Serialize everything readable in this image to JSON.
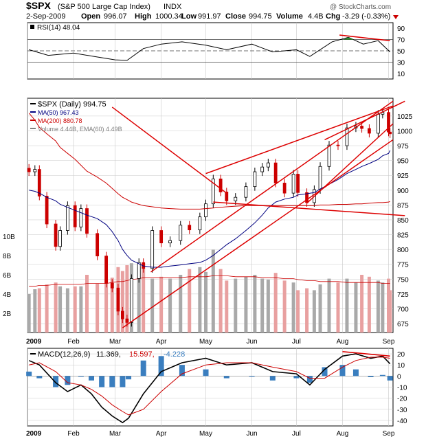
{
  "header": {
    "symbol": "$SPX",
    "name": "(S&P 500 Large Cap Index)",
    "exchange": "INDX",
    "watermark": "@ StockCharts.com",
    "date": "2-Sep-2009",
    "open_label": "Open",
    "open": "996.07",
    "high_label": "High",
    "high": "1000.34",
    "low_label": "Low",
    "low": "991.97",
    "close_label": "Close",
    "close": "994.75",
    "volume_label": "Volume",
    "volume": "4.4B",
    "chg_label": "Chg",
    "chg": "-3.29 (-0.33%)"
  },
  "colors": {
    "up_candle": "#000000",
    "down_candle": "#cc0000",
    "ma50": "#000080",
    "ma200": "#cc0000",
    "trendline": "#dd0000",
    "volume_up": "#a9a9a9",
    "volume_down": "#e8a0a0",
    "rsi_line": "#000000",
    "rsi_overbought_fill": "#2e8b2e",
    "macd_line": "#000000",
    "signal_line": "#cc0000",
    "histogram": "#3a7ebf",
    "grid": "#c8c8c8",
    "panel_border": "#000000"
  },
  "chart_data": [
    {
      "type": "line",
      "panel": "RSI",
      "title": "RSI(14) 48.04",
      "ylim": [
        0,
        100
      ],
      "yticks": [
        10,
        30,
        50,
        70,
        90
      ],
      "reference_lines": [
        30,
        50,
        70
      ],
      "x": [
        "2009-01-02",
        "2009-01-15",
        "2009-02-01",
        "2009-02-15",
        "2009-03-01",
        "2009-03-09",
        "2009-03-20",
        "2009-04-01",
        "2009-04-15",
        "2009-05-01",
        "2009-05-15",
        "2009-06-01",
        "2009-06-15",
        "2009-07-01",
        "2009-07-10",
        "2009-07-25",
        "2009-08-05",
        "2009-08-15",
        "2009-08-25",
        "2009-09-02"
      ],
      "series": [
        {
          "name": "RSI(14)",
          "values": [
            52,
            42,
            46,
            40,
            34,
            33,
            54,
            62,
            66,
            60,
            52,
            62,
            48,
            52,
            40,
            66,
            74,
            62,
            68,
            48
          ]
        }
      ],
      "annotations": [
        {
          "type": "trendline",
          "label": "RSI divergence line",
          "from": [
            "2009-07-30",
            78
          ],
          "to": [
            "2009-09-02",
            68
          ]
        }
      ]
    },
    {
      "type": "candlestick",
      "panel": "Price",
      "title": "$SPX (Daily) 994.75",
      "ylim": [
        660,
        1055
      ],
      "yticks": [
        675,
        700,
        725,
        750,
        775,
        800,
        825,
        850,
        875,
        900,
        925,
        950,
        975,
        1000,
        1025
      ],
      "x": [
        "2009-01-02",
        "2009-01-06",
        "2009-01-09",
        "2009-01-14",
        "2009-01-20",
        "2009-01-23",
        "2009-01-28",
        "2009-02-02",
        "2009-02-06",
        "2009-02-10",
        "2009-02-17",
        "2009-02-23",
        "2009-02-27",
        "2009-03-03",
        "2009-03-06",
        "2009-03-09",
        "2009-03-12",
        "2009-03-17",
        "2009-03-20",
        "2009-03-26",
        "2009-04-01",
        "2009-04-07",
        "2009-04-14",
        "2009-04-20",
        "2009-04-27",
        "2009-05-01",
        "2009-05-06",
        "2009-05-11",
        "2009-05-15",
        "2009-05-21",
        "2009-05-28",
        "2009-06-03",
        "2009-06-08",
        "2009-06-12",
        "2009-06-17",
        "2009-06-23",
        "2009-06-29",
        "2009-07-02",
        "2009-07-08",
        "2009-07-13",
        "2009-07-17",
        "2009-07-23",
        "2009-07-29",
        "2009-08-04",
        "2009-08-10",
        "2009-08-14",
        "2009-08-19",
        "2009-08-25",
        "2009-08-28",
        "2009-09-01",
        "2009-09-02"
      ],
      "series": [
        {
          "name": "Close",
          "values": [
            931,
            935,
            890,
            843,
            805,
            832,
            874,
            838,
            869,
            827,
            789,
            743,
            735,
            696,
            683,
            677,
            751,
            778,
            768,
            832,
            811,
            815,
            841,
            833,
            855,
            877,
            919,
            897,
            882,
            888,
            906,
            931,
            939,
            946,
            912,
            895,
            927,
            896,
            879,
            901,
            940,
            976,
            975,
            1005,
            1008,
            1004,
            996,
            1028,
            1031,
            998,
            995
          ]
        },
        {
          "name": "MA(50)",
          "values": [
            900,
            898,
            895,
            888,
            882,
            876,
            871,
            866,
            862,
            858,
            852,
            842,
            830,
            815,
            800,
            790,
            782,
            776,
            772,
            770,
            770,
            772,
            774,
            776,
            778,
            782,
            790,
            800,
            808,
            818,
            832,
            845,
            858,
            870,
            880,
            885,
            888,
            892,
            894,
            896,
            902,
            910,
            918,
            928,
            935,
            940,
            945,
            952,
            958,
            962,
            967
          ]
        },
        {
          "name": "MA(200)",
          "values": [
            1030,
            1018,
            1006,
            995,
            983,
            972,
            962,
            952,
            942,
            932,
            922,
            912,
            903,
            894,
            888,
            884,
            880,
            876,
            874,
            872,
            870,
            869,
            868,
            868,
            868,
            869,
            870,
            871,
            872,
            873,
            874,
            874,
            874,
            874,
            874,
            874,
            874,
            874,
            874,
            874,
            875,
            875,
            876,
            876,
            877,
            877,
            878,
            879,
            879,
            880,
            881
          ]
        }
      ],
      "legend": [
        {
          "label": "$SPX (Daily) 994.75",
          "color": "#000000"
        },
        {
          "label": "MA(50) 967.43",
          "color": "#000080"
        },
        {
          "label": "MA(200) 880.78",
          "color": "#cc0000"
        },
        {
          "label": "Volume 4.44B, EMA(60) 4.49B",
          "color": "#808080"
        }
      ],
      "annotations": [
        {
          "type": "trendline",
          "label": "lower channel line",
          "from": [
            "2009-03-06",
            668
          ],
          "to": [
            "2009-09-04",
            985
          ]
        },
        {
          "type": "trendline",
          "label": "inner channel line",
          "from": [
            "2009-03-25",
            762
          ],
          "to": [
            "2009-09-04",
            1050
          ]
        },
        {
          "type": "trendline",
          "label": "upper channel line",
          "from": [
            "2009-05-01",
            928
          ],
          "to": [
            "2009-09-04",
            1042
          ]
        },
        {
          "type": "trendline",
          "label": "top wedge line",
          "from": [
            "2009-07-20",
            985
          ],
          "to": [
            "2009-09-12",
            1050
          ]
        },
        {
          "type": "trendline",
          "label": "mid wedge line",
          "from": [
            "2009-07-08",
            878
          ],
          "to": [
            "2009-09-04",
            1012
          ]
        },
        {
          "type": "trendline",
          "label": "head support line",
          "from": [
            "2009-05-06",
            880
          ],
          "to": [
            "2009-09-12",
            857
          ]
        },
        {
          "type": "trendline",
          "label": "descending line",
          "from": [
            "2009-02-27",
            1040
          ],
          "to": [
            "2009-05-15",
            895
          ]
        }
      ]
    },
    {
      "type": "bar",
      "panel": "Volume",
      "ylim": [
        0,
        11
      ],
      "yticks_labels": [
        "2B",
        "4B",
        "6B",
        "8B",
        "10B"
      ],
      "yticks": [
        2,
        4,
        6,
        8,
        10
      ],
      "x": [
        "2009-01-02",
        "2009-01-06",
        "2009-01-09",
        "2009-01-14",
        "2009-01-20",
        "2009-01-23",
        "2009-01-28",
        "2009-02-02",
        "2009-02-06",
        "2009-02-10",
        "2009-02-17",
        "2009-02-23",
        "2009-02-27",
        "2009-03-03",
        "2009-03-06",
        "2009-03-09",
        "2009-03-12",
        "2009-03-17",
        "2009-03-20",
        "2009-03-26",
        "2009-04-01",
        "2009-04-07",
        "2009-04-14",
        "2009-04-20",
        "2009-04-27",
        "2009-05-01",
        "2009-05-06",
        "2009-05-11",
        "2009-05-15",
        "2009-05-21",
        "2009-05-28",
        "2009-06-03",
        "2009-06-08",
        "2009-06-12",
        "2009-06-17",
        "2009-06-23",
        "2009-06-29",
        "2009-07-02",
        "2009-07-08",
        "2009-07-13",
        "2009-07-17",
        "2009-07-23",
        "2009-07-29",
        "2009-08-04",
        "2009-08-10",
        "2009-08-14",
        "2009-08-19",
        "2009-08-25",
        "2009-08-28",
        "2009-09-01",
        "2009-09-02"
      ],
      "series": [
        {
          "name": "Volume (B)",
          "values": [
            4.0,
            4.5,
            4.6,
            5.0,
            5.2,
            4.8,
            4.6,
            4.8,
            4.8,
            6.0,
            5.1,
            5.6,
            5.7,
            6.8,
            6.4,
            7.0,
            7.2,
            6.8,
            7.2,
            5.6,
            5.8,
            5.6,
            6.0,
            6.6,
            6.8,
            6.3,
            8.6,
            6.6,
            5.4,
            5.6,
            5.8,
            6.0,
            5.6,
            5.5,
            6.2,
            5.4,
            5.2,
            4.4,
            4.6,
            4.4,
            5.0,
            5.6,
            5.2,
            5.6,
            5.2,
            6.0,
            5.8,
            5.4,
            5.2,
            5.6,
            4.4
          ]
        },
        {
          "name": "EMA(60)",
          "values": [
            4.8,
            4.8,
            4.9,
            4.9,
            5.0,
            5.0,
            5.0,
            5.0,
            5.0,
            5.1,
            5.1,
            5.1,
            5.2,
            5.3,
            5.3,
            5.4,
            5.5,
            5.6,
            5.7,
            5.7,
            5.7,
            5.7,
            5.7,
            5.8,
            5.8,
            5.8,
            5.9,
            5.9,
            5.9,
            5.8,
            5.8,
            5.8,
            5.7,
            5.7,
            5.7,
            5.6,
            5.6,
            5.5,
            5.4,
            5.4,
            5.3,
            5.3,
            5.3,
            5.2,
            5.2,
            5.2,
            5.2,
            5.2,
            5.1,
            5.1,
            5.1
          ]
        }
      ]
    },
    {
      "type": "line",
      "panel": "MACD",
      "title": "MACD(12,26,9) 11.369, 15.597, -4.228",
      "title_parts": {
        "label": "MACD(12,26,9)",
        "macd": "11.369,",
        "signal": "15.597,",
        "hist": "-4.228"
      },
      "ylim": [
        -45,
        25
      ],
      "yticks": [
        -40,
        -30,
        -20,
        -10,
        0,
        10,
        20
      ],
      "x": [
        "2009-01-02",
        "2009-01-09",
        "2009-01-20",
        "2009-01-28",
        "2009-02-06",
        "2009-02-13",
        "2009-02-20",
        "2009-02-27",
        "2009-03-06",
        "2009-03-10",
        "2009-03-20",
        "2009-04-01",
        "2009-04-15",
        "2009-05-01",
        "2009-05-15",
        "2009-06-01",
        "2009-06-15",
        "2009-07-01",
        "2009-07-10",
        "2009-07-20",
        "2009-08-01",
        "2009-08-10",
        "2009-08-20",
        "2009-08-28",
        "2009-09-02"
      ],
      "series": [
        {
          "name": "MACD",
          "values": [
            14,
            10,
            -6,
            -14,
            -8,
            -16,
            -28,
            -36,
            -42,
            -38,
            -16,
            4,
            12,
            16,
            10,
            12,
            4,
            2,
            -8,
            6,
            18,
            20,
            16,
            18,
            11
          ]
        },
        {
          "name": "Signal",
          "values": [
            10,
            12,
            4,
            -6,
            -8,
            -12,
            -18,
            -26,
            -32,
            -35,
            -30,
            -14,
            2,
            10,
            12,
            12,
            8,
            4,
            -2,
            -2,
            8,
            14,
            17,
            17,
            16
          ]
        },
        {
          "name": "Histogram",
          "values": [
            4,
            -2,
            -10,
            -8,
            0,
            -4,
            -10,
            -10,
            -10,
            -3,
            14,
            18,
            10,
            6,
            -2,
            0,
            -4,
            -2,
            -6,
            8,
            10,
            6,
            -1,
            1,
            -4
          ]
        }
      ],
      "annotations": [
        {
          "type": "trendline",
          "label": "MACD divergence line",
          "from": [
            "2009-08-01",
            22
          ],
          "to": [
            "2009-09-02",
            18
          ]
        }
      ]
    }
  ],
  "x_axis": {
    "labels": [
      "2009",
      "Feb",
      "Mar",
      "Apr",
      "May",
      "Jun",
      "Jul",
      "Aug",
      "Sep"
    ]
  }
}
